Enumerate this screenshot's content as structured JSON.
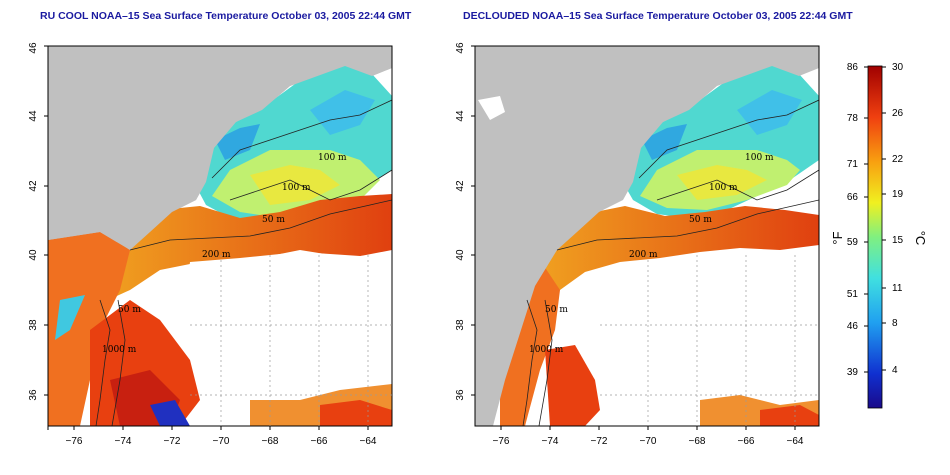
{
  "panels": [
    {
      "title": "RU COOL NOAA–15 Sea Surface Temperature October 03, 2005 22:44 GMT",
      "lon_ticks": [
        "−76",
        "−74",
        "−72",
        "−70",
        "−68",
        "−66",
        "−64"
      ],
      "lat_ticks": [
        "36",
        "38",
        "40",
        "42",
        "44",
        "46"
      ],
      "contour_labels": [
        "100 m",
        "100 m",
        "50 m",
        "200 m",
        "50 m",
        "1000 m"
      ]
    },
    {
      "title": "DECLOUDED NOAA–15 Sea Surface Temperature October 03, 2005 22:44 GMT",
      "lon_ticks": [
        "−76",
        "−74",
        "−72",
        "−70",
        "−68",
        "−66",
        "−64"
      ],
      "lat_ticks": [
        "36",
        "38",
        "40",
        "42",
        "44",
        "46"
      ],
      "contour_labels": [
        "100 m",
        "100 m",
        "50 m",
        "200 m",
        "50 m",
        "1000 m"
      ]
    }
  ],
  "colorbar": {
    "fahrenheit_label": "°F",
    "celsius_label": "°C",
    "fahrenheit_ticks": [
      "86",
      "78",
      "71",
      "66",
      "59",
      "51",
      "46",
      "39"
    ],
    "celsius_ticks": [
      "30",
      "26",
      "22",
      "19",
      "15",
      "11",
      "8",
      "4"
    ]
  },
  "colors": {
    "title": "#1a1aa0",
    "land": "#c0c0c0",
    "no_data": "#ffffff",
    "warm": "#e03a10",
    "mid": "#f0d010",
    "cool": "#40c8e0",
    "cold": "#1030c0"
  }
}
